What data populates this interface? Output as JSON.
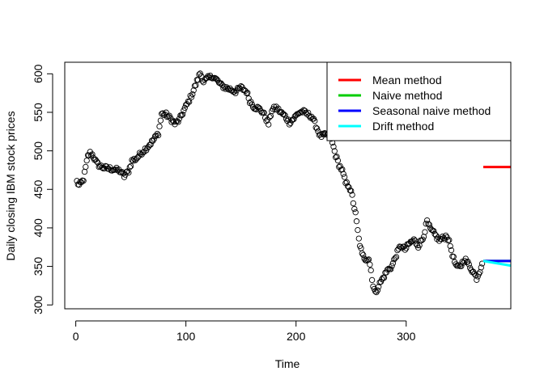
{
  "chart_data": {
    "type": "scatter",
    "title": "",
    "xlabel": "Time",
    "ylabel": "Daily closing IBM stock prices",
    "xlim": [
      -10,
      395
    ],
    "ylim": [
      295,
      615
    ],
    "xticks": [
      0,
      100,
      200,
      300
    ],
    "yticks": [
      300,
      350,
      400,
      450,
      500,
      550,
      600
    ],
    "grid": false,
    "legend_position": "top-right",
    "legend": [
      {
        "name": "Mean method",
        "color": "#ff0000"
      },
      {
        "name": "Naive method",
        "color": "#00cd00"
      },
      {
        "name": "Seasonal naive method",
        "color": "#0000ff"
      },
      {
        "name": "Drift method",
        "color": "#00ffff"
      }
    ],
    "observed_anchors": [
      [
        1,
        460
      ],
      [
        3,
        455
      ],
      [
        5,
        458
      ],
      [
        7,
        463
      ],
      [
        9,
        478
      ],
      [
        11,
        493
      ],
      [
        13,
        497
      ],
      [
        15,
        495
      ],
      [
        17,
        490
      ],
      [
        19,
        484
      ],
      [
        22,
        480
      ],
      [
        26,
        478
      ],
      [
        30,
        477
      ],
      [
        35,
        476
      ],
      [
        40,
        474
      ],
      [
        44,
        467
      ],
      [
        48,
        474
      ],
      [
        51,
        487
      ],
      [
        55,
        490
      ],
      [
        60,
        498
      ],
      [
        65,
        505
      ],
      [
        70,
        513
      ],
      [
        75,
        523
      ],
      [
        78,
        548
      ],
      [
        82,
        547
      ],
      [
        86,
        542
      ],
      [
        90,
        535
      ],
      [
        94,
        540
      ],
      [
        98,
        552
      ],
      [
        102,
        563
      ],
      [
        106,
        575
      ],
      [
        110,
        590
      ],
      [
        113,
        601
      ],
      [
        116,
        590
      ],
      [
        120,
        594
      ],
      [
        124,
        597
      ],
      [
        128,
        592
      ],
      [
        132,
        585
      ],
      [
        136,
        582
      ],
      [
        140,
        580
      ],
      [
        145,
        577
      ],
      [
        150,
        582
      ],
      [
        155,
        577
      ],
      [
        158,
        565
      ],
      [
        162,
        557
      ],
      [
        166,
        555
      ],
      [
        170,
        550
      ],
      [
        175,
        535
      ],
      [
        178,
        553
      ],
      [
        182,
        556
      ],
      [
        186,
        550
      ],
      [
        190,
        545
      ],
      [
        194,
        537
      ],
      [
        198,
        542
      ],
      [
        202,
        549
      ],
      [
        206,
        551
      ],
      [
        210,
        548
      ],
      [
        214,
        545
      ],
      [
        218,
        533
      ],
      [
        222,
        519
      ],
      [
        226,
        520
      ],
      [
        230,
        522
      ],
      [
        233,
        510
      ],
      [
        236,
        494
      ],
      [
        239,
        482
      ],
      [
        242,
        474
      ],
      [
        245,
        458
      ],
      [
        248,
        455
      ],
      [
        251,
        441
      ],
      [
        254,
        418
      ],
      [
        257,
        385
      ],
      [
        260,
        365
      ],
      [
        263,
        360
      ],
      [
        266,
        360
      ],
      [
        268,
        345
      ],
      [
        270,
        325
      ],
      [
        272,
        315
      ],
      [
        275,
        325
      ],
      [
        279,
        335
      ],
      [
        283,
        345
      ],
      [
        287,
        350
      ],
      [
        291,
        365
      ],
      [
        295,
        377
      ],
      [
        299,
        372
      ],
      [
        303,
        380
      ],
      [
        307,
        384
      ],
      [
        311,
        377
      ],
      [
        315,
        386
      ],
      [
        319,
        408
      ],
      [
        322,
        398
      ],
      [
        325,
        393
      ],
      [
        330,
        384
      ],
      [
        334,
        387
      ],
      [
        337,
        390
      ],
      [
        340,
        377
      ],
      [
        343,
        360
      ],
      [
        346,
        348
      ],
      [
        350,
        352
      ],
      [
        353,
        360
      ],
      [
        356,
        354
      ],
      [
        360,
        345
      ],
      [
        364,
        335
      ],
      [
        367,
        345
      ],
      [
        369,
        356
      ]
    ],
    "forecasts": [
      {
        "name": "Mean method",
        "x": [
          370,
          395
        ],
        "y": [
          479,
          479
        ],
        "color": "#ff0000"
      },
      {
        "name": "Naive method",
        "x": [
          370,
          395
        ],
        "y": [
          357,
          357
        ],
        "color": "#00cd00"
      },
      {
        "name": "Seasonal naive method",
        "x": [
          370,
          395
        ],
        "y": [
          357,
          357
        ],
        "color": "#0000ff"
      },
      {
        "name": "Drift method",
        "x": [
          370,
          395
        ],
        "y": [
          357,
          351
        ],
        "color": "#00ffff"
      }
    ]
  }
}
